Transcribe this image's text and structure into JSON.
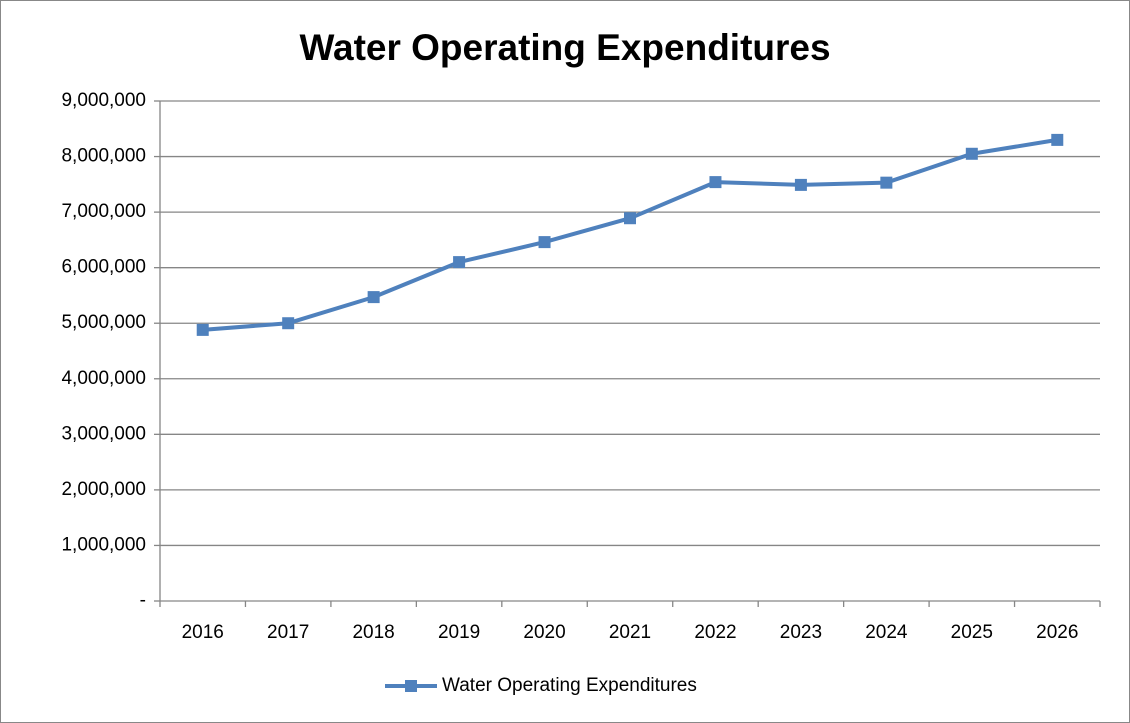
{
  "chart_data": {
    "type": "line",
    "title": "Water Operating Expenditures",
    "categories": [
      "2016",
      "2017",
      "2018",
      "2019",
      "2020",
      "2021",
      "2022",
      "2023",
      "2024",
      "2025",
      "2026"
    ],
    "series": [
      {
        "name": "Water Operating Expenditures",
        "color": "#4f81bd",
        "values": [
          4880000,
          5000000,
          5470000,
          6100000,
          6460000,
          6890000,
          7540000,
          7490000,
          7530000,
          8050000,
          8300000
        ]
      }
    ],
    "ylim": [
      0,
      9000000
    ],
    "yticks": [
      {
        "value": 0,
        "label": "-"
      },
      {
        "value": 1000000,
        "label": "1,000,000"
      },
      {
        "value": 2000000,
        "label": "2,000,000"
      },
      {
        "value": 3000000,
        "label": "3,000,000"
      },
      {
        "value": 4000000,
        "label": "4,000,000"
      },
      {
        "value": 5000000,
        "label": "5,000,000"
      },
      {
        "value": 6000000,
        "label": "6,000,000"
      },
      {
        "value": 7000000,
        "label": "7,000,000"
      },
      {
        "value": 8000000,
        "label": "8,000,000"
      },
      {
        "value": 9000000,
        "label": "9,000,000"
      }
    ],
    "grid": true,
    "legend": "bottom"
  }
}
